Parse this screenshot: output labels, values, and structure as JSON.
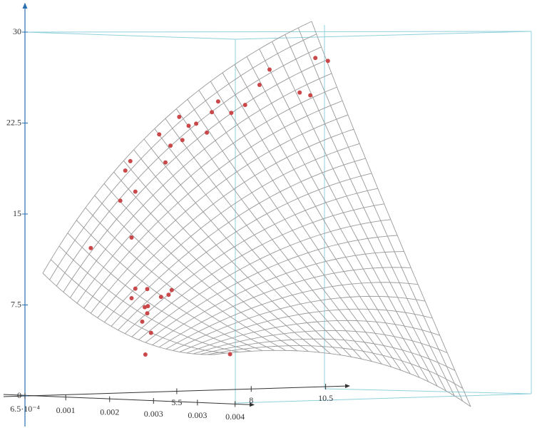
{
  "chart_data": {
    "type": "scatter3d",
    "x": [
      0.00528,
      0.00548,
      0.00455,
      0.00439,
      0.00503,
      0.0052,
      0.00373,
      0.00394,
      0.00416,
      0.00363,
      0.00311,
      0.00338,
      0.00326,
      0.00279,
      0.00355,
      0.00316,
      0.00297,
      0.00233,
      0.00289,
      0.00225,
      0.00241,
      0.00217,
      0.00235,
      0.0017,
      0.00241,
      0.0026,
      0.00299,
      0.00235,
      0.00282,
      0.00294,
      0.00256,
      0.00261,
      0.0026,
      0.00252,
      0.00266,
      0.00257,
      0.00392
    ],
    "z": [
      28.8,
      28.6,
      27.7,
      26.4,
      25.9,
      25.7,
      24.9,
      24.0,
      24.7,
      24.0,
      23.5,
      23.0,
      22.8,
      22.0,
      22.3,
      21.6,
      21.1,
      19.7,
      19.7,
      18.9,
      17.2,
      16.4,
      13.4,
      12.4,
      9.2,
      9.2,
      9.2,
      8.4,
      8.6,
      8.8,
      7.7,
      7.8,
      7.2,
      6.5,
      5.6,
      3.8,
      4.1
    ],
    "color": "#c9484a",
    "xlim": [
      0.00065,
      0.0043
    ],
    "xticks": [
      {
        "value": 0.00065,
        "label": "6.5·10⁻⁴"
      },
      {
        "value": 0.0013,
        "label": "0.001"
      },
      {
        "value": 0.002,
        "label": "0.002"
      },
      {
        "value": 0.0027,
        "label": "0.003"
      },
      {
        "value": 0.0034,
        "label": "0.003"
      },
      {
        "value": 0.004,
        "label": "0.004"
      }
    ],
    "ylim": [
      0.4,
      11.3
    ],
    "yticks": [
      5.5,
      8,
      10.5
    ],
    "zlim": [
      0,
      30
    ],
    "zticks": [
      0,
      7.5,
      15,
      22.5,
      30
    ]
  }
}
